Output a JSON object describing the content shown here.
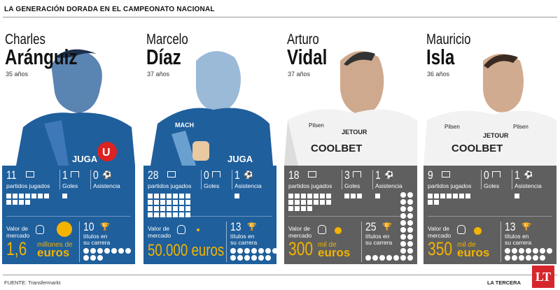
{
  "header": {
    "title": "LA GENERACIÓN DORADA EN EL CAMPEONATO NACIONAL"
  },
  "labels": {
    "played": "partidos jugados",
    "goals": "Goles",
    "assists": "Asistencia",
    "market_l1": "Valor de",
    "market_l2": "mercado",
    "titles_l1": "títulos en",
    "titles_l2": "su carrera"
  },
  "players": [
    {
      "first": "Charles",
      "last": "Aránguiz",
      "age": "35 años",
      "team_color": "#1f5f9c",
      "played": "11",
      "goals": "1",
      "assists": "0",
      "value_big": "1,6",
      "value_unit_1": "millones de",
      "value_unit_2": "euros",
      "titles": "10"
    },
    {
      "first": "Marcelo",
      "last": "Díaz",
      "age": "37 años",
      "team_color": "#1f5f9c",
      "played": "28",
      "goals": "0",
      "assists": "1",
      "value_big": "50.000 euros",
      "value_unit_1": "",
      "value_unit_2": "",
      "titles": "13"
    },
    {
      "first": "Arturo",
      "last": "Vidal",
      "age": "37 años",
      "team_color": "#5f5f5f",
      "played": "18",
      "goals": "3",
      "assists": "1",
      "value_big": "300",
      "value_unit_1": "mil de",
      "value_unit_2": "euros",
      "titles": "25"
    },
    {
      "first": "Mauricio",
      "last": "Isla",
      "age": "36 años",
      "team_color": "#5f5f5f",
      "played": "9",
      "goals": "0",
      "assists": "1",
      "value_big": "350",
      "value_unit_1": "mil de",
      "value_unit_2": "euros",
      "titles": "13"
    }
  ],
  "footer": {
    "source": "FUENTE: Transfermarkt",
    "brand": "LA TERCERA",
    "logo": "LT"
  },
  "colors": {
    "blue_panel": "#1f5f9c",
    "gray_panel": "#5f5f5f",
    "accent": "#f3b300",
    "logo": "#d6262c"
  },
  "icons": [
    "stadium-icon",
    "goal-icon",
    "kick-icon",
    "money-bag-icon",
    "trophy-icon",
    "coin-icon"
  ]
}
